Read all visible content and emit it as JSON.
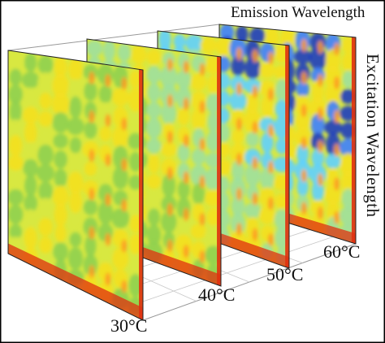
{
  "figure": {
    "emission_axis_label": "Emission Wavelength",
    "excitation_axis_label": "Excitation Wavelength",
    "temperatures": [
      "30°C",
      "40°C",
      "50°C",
      "60°C"
    ]
  },
  "colors": {
    "frame": "#000000",
    "grid": "#c8c8c8",
    "palette": [
      "#1f3fbf",
      "#3f7fff",
      "#5fd0ff",
      "#9fe09f",
      "#8fd050",
      "#d8e840",
      "#f4e020",
      "#ff9a20",
      "#e03010"
    ]
  },
  "icons": []
}
